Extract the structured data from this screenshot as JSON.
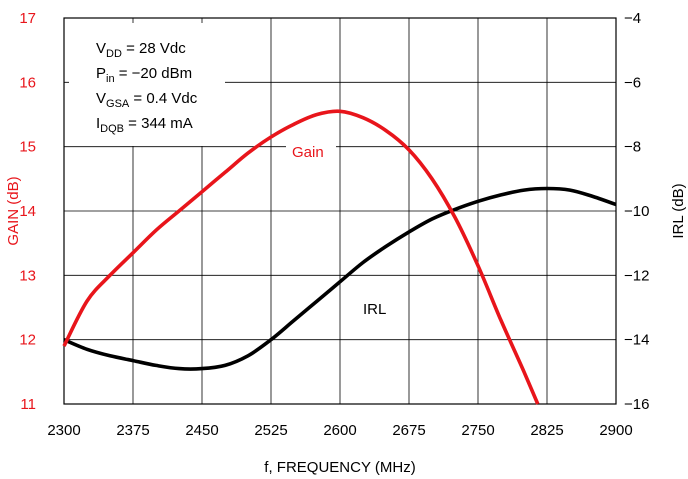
{
  "chart_data": {
    "type": "line",
    "x": [
      2300,
      2325,
      2350,
      2375,
      2400,
      2425,
      2450,
      2475,
      2500,
      2525,
      2550,
      2575,
      2600,
      2625,
      2650,
      2675,
      2700,
      2725,
      2750,
      2775,
      2800,
      2825,
      2850,
      2875,
      2900
    ],
    "xlabel": "f, FREQUENCY (MHz)",
    "xlim": [
      2300,
      2900
    ],
    "x_ticks": [
      "2300",
      "2375",
      "2450",
      "2525",
      "2600",
      "2675",
      "2750",
      "2825",
      "2900"
    ],
    "ylabel_left": "GAIN (dB)",
    "ylim_left": [
      11,
      17
    ],
    "y_ticks_left": [
      "11",
      "12",
      "13",
      "14",
      "15",
      "16",
      "17"
    ],
    "ylabel_right": "IRL (dB)",
    "ylim_right": [
      -16,
      -4
    ],
    "y_ticks_right": [
      "−16",
      "−14",
      "−12",
      "−10",
      "−8",
      "−6",
      "−4"
    ],
    "grid": true,
    "colors": {
      "gain": "#e8151b",
      "irl": "#000000",
      "left_axis": "#e8151b"
    },
    "series": [
      {
        "name": "Gain",
        "axis": "left",
        "x": [
          2300,
          2325,
          2350,
          2375,
          2400,
          2425,
          2450,
          2475,
          2500,
          2525,
          2550,
          2575,
          2600,
          2625,
          2650,
          2675,
          2700,
          2725,
          2750,
          2775,
          2800,
          2815
        ],
        "values": [
          11.9,
          12.6,
          13.0,
          13.35,
          13.7,
          14.0,
          14.3,
          14.6,
          14.9,
          15.15,
          15.35,
          15.5,
          15.55,
          15.45,
          15.25,
          14.95,
          14.5,
          13.9,
          13.15,
          12.3,
          11.5,
          11.0
        ]
      },
      {
        "name": "IRL",
        "axis": "right",
        "values": [
          -14.0,
          -14.3,
          -14.5,
          -14.65,
          -14.8,
          -14.9,
          -14.9,
          -14.8,
          -14.5,
          -14.0,
          -13.4,
          -12.8,
          -12.2,
          -11.6,
          -11.1,
          -10.65,
          -10.25,
          -9.95,
          -9.7,
          -9.5,
          -9.35,
          -9.3,
          -9.35,
          -9.55,
          -9.8
        ]
      }
    ],
    "annotations": {
      "conditions": [
        {
          "main": "V",
          "sub": "DD",
          "rest": " = 28 Vdc"
        },
        {
          "main": "P",
          "sub": "in",
          "rest": " = −20 dBm"
        },
        {
          "main": "V",
          "sub": "GSA",
          "rest": " = 0.4 Vdc"
        },
        {
          "main": "I",
          "sub": "DQB",
          "rest": " = 344 mA"
        }
      ],
      "gain_label": "Gain",
      "irl_label": "IRL"
    }
  }
}
